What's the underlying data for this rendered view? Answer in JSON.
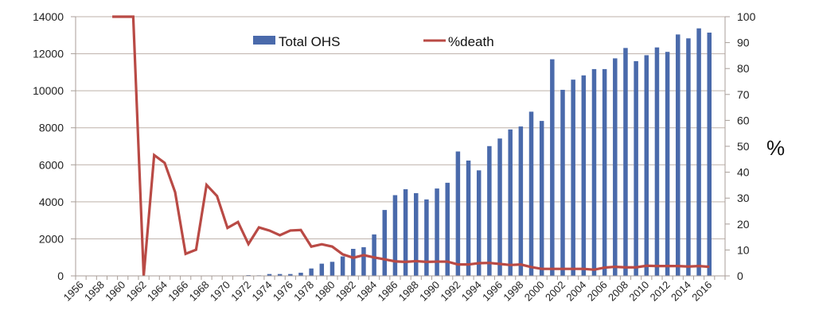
{
  "chart_data": {
    "type": "bar+line",
    "title": "",
    "categories": [
      "1956",
      "1957",
      "1958",
      "1959",
      "1960",
      "1961",
      "1962",
      "1963",
      "1964",
      "1965",
      "1966",
      "1967",
      "1968",
      "1969",
      "1970",
      "1971",
      "1972",
      "1973",
      "1974",
      "1975",
      "1976",
      "1977",
      "1978",
      "1979",
      "1980",
      "1981",
      "1982",
      "1983",
      "1984",
      "1985",
      "1986",
      "1987",
      "1988",
      "1989",
      "1990",
      "1991",
      "1992",
      "1993",
      "1994",
      "1995",
      "1996",
      "1997",
      "1998",
      "1999",
      "2000",
      "2001",
      "2002",
      "2003",
      "2004",
      "2005",
      "2006",
      "2007",
      "2008",
      "2009",
      "2010",
      "2011",
      "2012",
      "2013",
      "2014",
      "2015",
      "2016",
      "2017"
    ],
    "x_tick_labels": [
      "1956",
      "1958",
      "1960",
      "1962",
      "1964",
      "1966",
      "1968",
      "1970",
      "1972",
      "1974",
      "1976",
      "1978",
      "1980",
      "1982",
      "1984",
      "1986",
      "1988",
      "1990",
      "1992",
      "1994",
      "1996",
      "1998",
      "2000",
      "2002",
      "2004",
      "2006",
      "2008",
      "2010",
      "2012",
      "2014",
      "2016"
    ],
    "series": [
      {
        "name": "Total OHS",
        "type": "bar",
        "axis": "left",
        "color": "#4a6aab",
        "values": [
          null,
          null,
          null,
          null,
          null,
          null,
          null,
          null,
          null,
          null,
          null,
          null,
          null,
          null,
          null,
          null,
          40,
          30,
          100,
          100,
          100,
          170,
          400,
          660,
          760,
          1050,
          1460,
          1550,
          2240,
          3560,
          4360,
          4680,
          4470,
          4130,
          4720,
          5030,
          6720,
          6230,
          5700,
          7010,
          7420,
          7910,
          8070,
          8870,
          8370,
          11700,
          10050,
          10600,
          10830,
          11170,
          11170,
          11750,
          12310,
          11600,
          11920,
          12340,
          12100,
          13040,
          12830,
          13370,
          13140,
          null
        ]
      },
      {
        "name": "%death",
        "type": "line",
        "axis": "right",
        "color": "#b94a45",
        "values": [
          null,
          null,
          null,
          100,
          100,
          100,
          0,
          46.6,
          43.6,
          32.3,
          8.5,
          10.1,
          35.1,
          30.8,
          18.5,
          20.8,
          12.3,
          18.7,
          17.5,
          15.7,
          17.5,
          17.7,
          11.3,
          12.2,
          11.3,
          8.3,
          7.0,
          8.0,
          7.1,
          6.4,
          5.6,
          5.4,
          5.7,
          5.4,
          5.5,
          5.5,
          4.4,
          4.4,
          4.9,
          5.0,
          4.6,
          4.2,
          4.4,
          3.4,
          2.7,
          2.7,
          2.7,
          2.7,
          2.7,
          2.4,
          3.2,
          3.5,
          3.3,
          3.3,
          3.9,
          3.8,
          3.8,
          3.8,
          3.6,
          3.8,
          3.5,
          null
        ]
      }
    ],
    "y_left": {
      "label": "",
      "ylim": [
        0,
        14000
      ],
      "ticks": [
        0,
        2000,
        4000,
        6000,
        8000,
        10000,
        12000,
        14000
      ]
    },
    "y_right": {
      "label": "%",
      "ylim": [
        0,
        100
      ],
      "ticks": [
        0,
        10,
        20,
        30,
        40,
        50,
        60,
        70,
        80,
        90,
        100
      ]
    },
    "xlabel": "",
    "grid": true,
    "legend": {
      "placement": "top-center",
      "entries": [
        "Total OHS",
        "%death"
      ]
    }
  }
}
